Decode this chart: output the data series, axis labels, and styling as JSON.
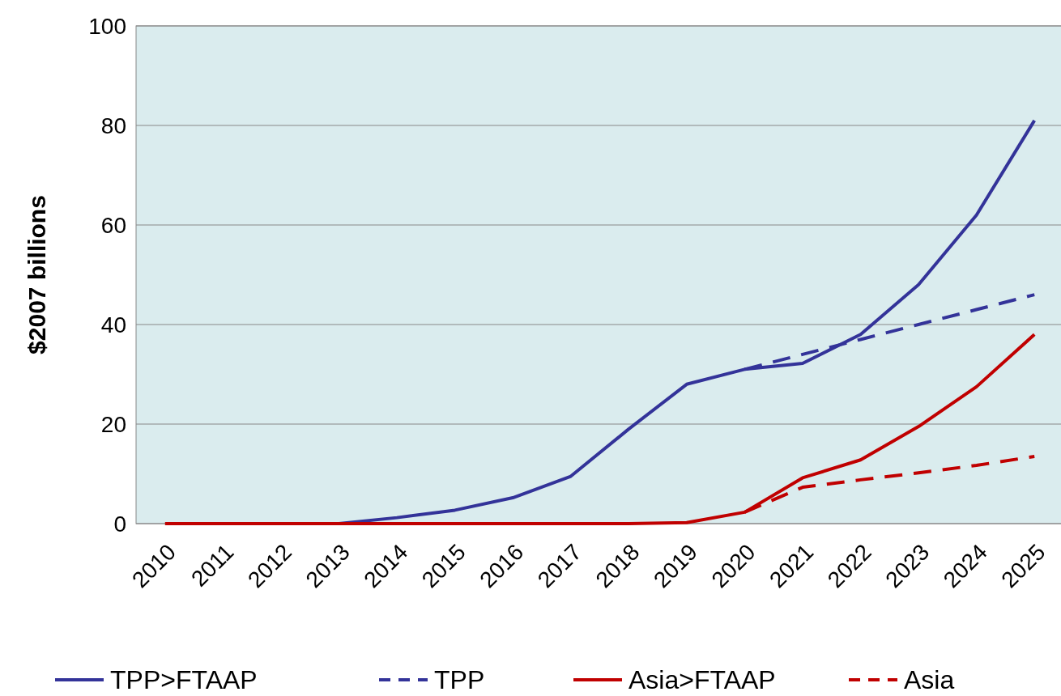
{
  "chart_data": {
    "type": "line",
    "ylabel": "$2007 billions",
    "categories": [
      "2010",
      "2011",
      "2012",
      "2013",
      "2014",
      "2015",
      "2016",
      "2017",
      "2018",
      "2019",
      "2020",
      "2021",
      "2022",
      "2023",
      "2024",
      "2025"
    ],
    "ylim": [
      0,
      100
    ],
    "yticks": [
      0,
      20,
      40,
      60,
      80,
      100
    ],
    "grid": "y",
    "legend": "bottom",
    "marker": "none",
    "series": [
      {
        "name": "TPP>FTAAP",
        "color": "#333399",
        "line_style": "solid",
        "values": [
          null,
          null,
          0,
          0,
          1.2,
          2.7,
          5.2,
          9.5,
          19,
          28,
          31,
          32.2,
          38,
          48,
          62,
          81
        ]
      },
      {
        "name": "TPP",
        "color": "#333399",
        "line_style": "dashed",
        "values": [
          null,
          null,
          null,
          null,
          null,
          null,
          null,
          null,
          null,
          null,
          31,
          34,
          37,
          40,
          43,
          46
        ]
      },
      {
        "name": "Asia>FTAAP",
        "color": "#c00000",
        "line_style": "solid",
        "values": [
          0,
          0,
          0,
          0,
          0,
          0,
          0,
          0,
          0,
          0.2,
          2.3,
          9.2,
          12.8,
          19.5,
          27.5,
          38
        ]
      },
      {
        "name": "Asia",
        "color": "#c00000",
        "line_style": "dashed",
        "values": [
          null,
          null,
          null,
          null,
          null,
          null,
          null,
          null,
          null,
          null,
          2.3,
          7.3,
          8.8,
          10.2,
          11.7,
          13.5
        ]
      }
    ]
  }
}
